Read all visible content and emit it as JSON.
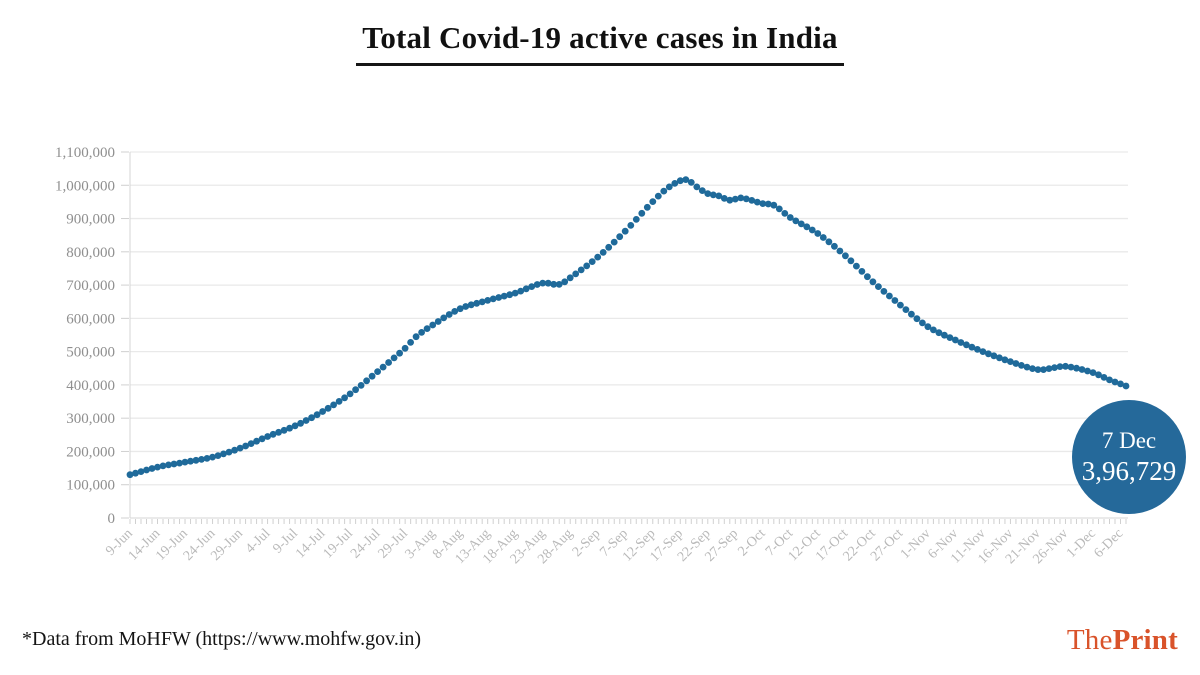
{
  "page": {
    "background": "#ffffff"
  },
  "header": {
    "title": "Total Covid-19 active cases in India"
  },
  "chart_data": {
    "type": "scatter",
    "title": "Total Covid-19 active cases in India",
    "x_unit": "date (daily dots, tick labels every 5 days)",
    "x_tick_labels": [
      "9-Jun",
      "14-Jun",
      "19-Jun",
      "24-Jun",
      "29-Jun",
      "4-Jul",
      "9-Jul",
      "14-Jul",
      "19-Jul",
      "24-Jul",
      "29-Jul",
      "3-Aug",
      "8-Aug",
      "13-Aug",
      "18-Aug",
      "23-Aug",
      "28-Aug",
      "2-Sep",
      "7-Sep",
      "12-Sep",
      "17-Sep",
      "22-Sep",
      "27-Sep",
      "2-Oct",
      "7-Oct",
      "12-Oct",
      "17-Oct",
      "22-Oct",
      "27-Oct",
      "1-Nov",
      "6-Nov",
      "11-Nov",
      "16-Nov",
      "21-Nov",
      "26-Nov",
      "1-Dec",
      "6-Dec"
    ],
    "x_tick_interval_days": 5,
    "total_days": 181,
    "ylim": [
      0,
      1100000
    ],
    "grid": "horizontal",
    "legend": "none",
    "y_ticks": [
      {
        "value": 0,
        "label": "0"
      },
      {
        "value": 100000,
        "label": "100,000"
      },
      {
        "value": 200000,
        "label": "200,000"
      },
      {
        "value": 300000,
        "label": "300,000"
      },
      {
        "value": 400000,
        "label": "400,000"
      },
      {
        "value": 500000,
        "label": "500,000"
      },
      {
        "value": 600000,
        "label": "600,000"
      },
      {
        "value": 700000,
        "label": "700,000"
      },
      {
        "value": 800000,
        "label": "800,000"
      },
      {
        "value": 900000,
        "label": "900,000"
      },
      {
        "value": 1000000,
        "label": "1,000,000"
      },
      {
        "value": 1100000,
        "label": "1,100,000"
      }
    ],
    "series": [
      {
        "name": "Active cases",
        "points": [
          {
            "date": "9-Jun",
            "day": 0,
            "value": 130000
          },
          {
            "date": "14-Jun",
            "day": 5,
            "value": 153000
          },
          {
            "date": "19-Jun",
            "day": 10,
            "value": 168000
          },
          {
            "date": "24-Jun",
            "day": 15,
            "value": 183000
          },
          {
            "date": "29-Jun",
            "day": 20,
            "value": 210000
          },
          {
            "date": "4-Jul",
            "day": 25,
            "value": 245000
          },
          {
            "date": "9-Jul",
            "day": 30,
            "value": 277000
          },
          {
            "date": "14-Jul",
            "day": 35,
            "value": 320000
          },
          {
            "date": "19-Jul",
            "day": 40,
            "value": 373000
          },
          {
            "date": "24-Jul",
            "day": 45,
            "value": 440000
          },
          {
            "date": "29-Jul",
            "day": 50,
            "value": 510000
          },
          {
            "date": "31-Jul",
            "day": 52,
            "value": 545000
          },
          {
            "date": "3-Aug",
            "day": 55,
            "value": 580000
          },
          {
            "date": "8-Aug",
            "day": 60,
            "value": 629000
          },
          {
            "date": "13-Aug",
            "day": 65,
            "value": 654000
          },
          {
            "date": "18-Aug",
            "day": 70,
            "value": 676000
          },
          {
            "date": "23-Aug",
            "day": 75,
            "value": 706000
          },
          {
            "date": "26-Aug",
            "day": 78,
            "value": 702000
          },
          {
            "date": "28-Aug",
            "day": 80,
            "value": 722000
          },
          {
            "date": "2-Sep",
            "day": 85,
            "value": 784000
          },
          {
            "date": "7-Sep",
            "day": 90,
            "value": 862000
          },
          {
            "date": "12-Sep",
            "day": 95,
            "value": 951000
          },
          {
            "date": "15-Sep",
            "day": 98,
            "value": 995000
          },
          {
            "date": "18-Sep",
            "day": 101,
            "value": 1017000
          },
          {
            "date": "20-Sep",
            "day": 103,
            "value": 995000
          },
          {
            "date": "22-Sep",
            "day": 105,
            "value": 975000
          },
          {
            "date": "24-Sep",
            "day": 107,
            "value": 968000
          },
          {
            "date": "26-Sep",
            "day": 109,
            "value": 955000
          },
          {
            "date": "28-Sep",
            "day": 111,
            "value": 962000
          },
          {
            "date": "2-Oct",
            "day": 115,
            "value": 945000
          },
          {
            "date": "4-Oct",
            "day": 117,
            "value": 940000
          },
          {
            "date": "7-Oct",
            "day": 120,
            "value": 903000
          },
          {
            "date": "12-Oct",
            "day": 125,
            "value": 855000
          },
          {
            "date": "17-Oct",
            "day": 130,
            "value": 788000
          },
          {
            "date": "22-Oct",
            "day": 135,
            "value": 710000
          },
          {
            "date": "27-Oct",
            "day": 140,
            "value": 640000
          },
          {
            "date": "1-Nov",
            "day": 145,
            "value": 575000
          },
          {
            "date": "6-Nov",
            "day": 150,
            "value": 535000
          },
          {
            "date": "11-Nov",
            "day": 155,
            "value": 500000
          },
          {
            "date": "16-Nov",
            "day": 160,
            "value": 470000
          },
          {
            "date": "21-Nov",
            "day": 165,
            "value": 446000
          },
          {
            "date": "24-Nov",
            "day": 168,
            "value": 452000
          },
          {
            "date": "26-Nov",
            "day": 170,
            "value": 456000
          },
          {
            "date": "1-Dec",
            "day": 175,
            "value": 437000
          },
          {
            "date": "4-Dec",
            "day": 178,
            "value": 415000
          },
          {
            "date": "6-Dec",
            "day": 180,
            "value": 403000
          },
          {
            "date": "7-Dec",
            "day": 181,
            "value": 396729
          }
        ]
      }
    ],
    "last_point": {
      "date": "7 Dec",
      "day": 181,
      "value": 396729,
      "value_label": "3,96,729"
    }
  },
  "callout": {
    "date_label": "7 Dec",
    "value_label": "3,96,729",
    "bg_color": "#25699a",
    "text_color": "#ffffff"
  },
  "footer": {
    "note": "*Data from MoHFW (https://www.mohfw.gov.in)",
    "logo": {
      "first": "The",
      "second": "Print",
      "color": "#d9532a"
    }
  },
  "colors": {
    "dot": "#1f6a9a",
    "grid": "#e9e9e9",
    "axis": "#d6d6d6",
    "tick": "#d0d0d0",
    "y_label": "#8f8f8f",
    "x_label": "#b9b9b9",
    "title": "#111111",
    "note": "#141414"
  }
}
